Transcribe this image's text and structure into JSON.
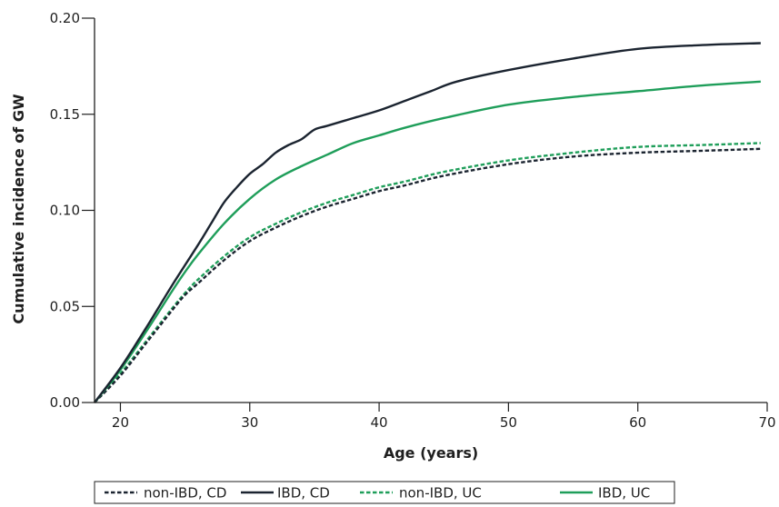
{
  "chart_data": {
    "type": "line",
    "xlabel": "Age (years)",
    "ylabel": "Cumulative incidence of GW",
    "xlim": [
      18,
      70
    ],
    "ylim": [
      0,
      0.2
    ],
    "xticks": [
      20,
      30,
      40,
      50,
      60,
      70
    ],
    "xtick_labels": [
      "20",
      "30",
      "40",
      "50",
      "60",
      "70"
    ],
    "yticks": [
      0,
      0.05,
      0.1,
      0.15,
      0.2
    ],
    "ytick_labels": [
      "0.00",
      "0.05",
      "0.10",
      "0.15",
      "0.20"
    ],
    "grid": false,
    "legend_position": "bottom-center",
    "series": [
      {
        "name": "non-IBD, CD",
        "color": "#1b2430",
        "style": "dashed",
        "x": [
          18,
          20,
          22,
          24,
          25,
          26,
          28,
          30,
          32,
          34,
          36,
          38,
          40,
          42,
          45,
          50,
          55,
          60,
          65,
          69.5
        ],
        "y": [
          0,
          0.014,
          0.031,
          0.048,
          0.056,
          0.062,
          0.074,
          0.084,
          0.091,
          0.097,
          0.102,
          0.106,
          0.11,
          0.113,
          0.118,
          0.124,
          0.128,
          0.13,
          0.131,
          0.132
        ]
      },
      {
        "name": "IBD, CD",
        "color": "#1b2430",
        "style": "solid",
        "x": [
          18,
          20,
          22,
          24,
          26,
          27,
          28,
          29,
          30,
          31,
          32,
          33,
          34,
          35,
          36,
          38,
          40,
          42,
          44,
          46,
          50,
          55,
          60,
          65,
          69.5
        ],
        "y": [
          0,
          0.018,
          0.039,
          0.061,
          0.082,
          0.093,
          0.104,
          0.112,
          0.119,
          0.124,
          0.13,
          0.134,
          0.137,
          0.142,
          0.144,
          0.148,
          0.152,
          0.157,
          0.162,
          0.167,
          0.173,
          0.179,
          0.184,
          0.186,
          0.187
        ]
      },
      {
        "name": "non-IBD, UC",
        "color": "#1f9e5a",
        "style": "dashed",
        "x": [
          18,
          20,
          22,
          24,
          25,
          26,
          28,
          30,
          32,
          34,
          36,
          38,
          40,
          42,
          45,
          50,
          55,
          60,
          65,
          69.5
        ],
        "y": [
          0,
          0.015,
          0.032,
          0.049,
          0.057,
          0.064,
          0.076,
          0.086,
          0.093,
          0.099,
          0.104,
          0.108,
          0.112,
          0.115,
          0.12,
          0.126,
          0.13,
          0.133,
          0.134,
          0.135
        ]
      },
      {
        "name": "IBD, UC",
        "color": "#1f9e5a",
        "style": "solid",
        "x": [
          18,
          20,
          22,
          24,
          25,
          26,
          28,
          30,
          32,
          34,
          36,
          38,
          40,
          42,
          45,
          50,
          55,
          60,
          65,
          69.5
        ],
        "y": [
          0,
          0.017,
          0.037,
          0.058,
          0.068,
          0.077,
          0.093,
          0.106,
          0.116,
          0.123,
          0.129,
          0.135,
          0.139,
          0.143,
          0.148,
          0.155,
          0.159,
          0.162,
          0.165,
          0.167
        ]
      }
    ]
  }
}
